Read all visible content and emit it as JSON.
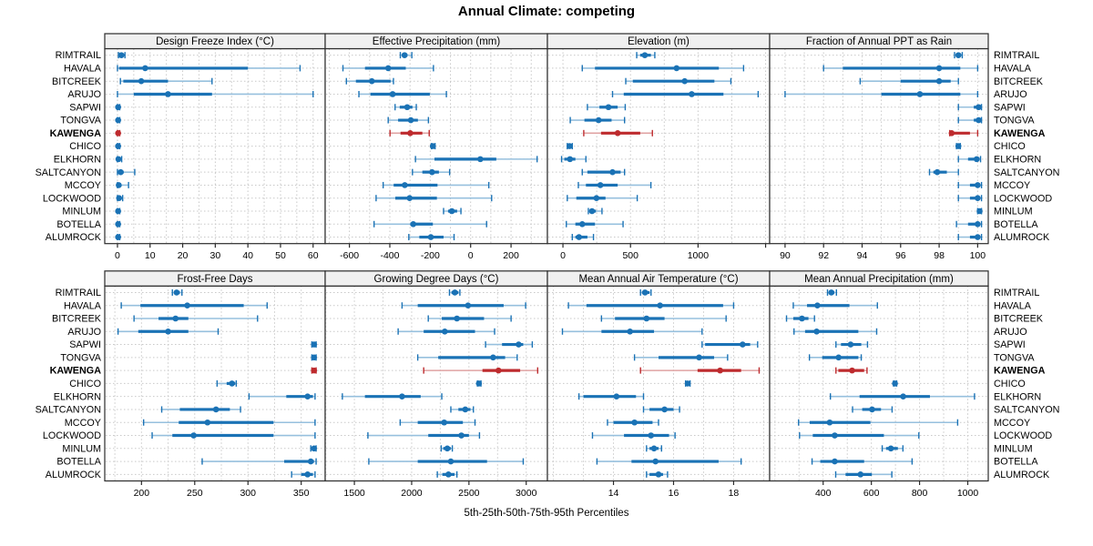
{
  "title": "Annual Climate: competing",
  "caption": "5th-25th-50th-75th-95th Percentiles",
  "sites": [
    "RIMTRAIL",
    "HAVALA",
    "BITCREEK",
    "ARUJO",
    "SAPWI",
    "TONGVA",
    "KAWENGA",
    "CHICO",
    "ELKHORN",
    "SALTCANYON",
    "MCCOY",
    "LOCKWOOD",
    "MINLUM",
    "BOTELLA",
    "ALUMROCK"
  ],
  "highlight_site": "KAWENGA",
  "colors": {
    "normal": "#1A72B5",
    "normal_light": "#97C0DE",
    "highlight": "#BE2B2E",
    "highlight_light": "#E0A3A3",
    "grid": "#C9C9C9",
    "strip_bg": "#F0F0F0",
    "border": "#2B2B2B"
  },
  "percentile_labels": [
    "p5",
    "p25",
    "p50",
    "p75",
    "p95"
  ],
  "chart_data": [
    {
      "type": "dotplot-interval",
      "title": "Design Freeze Index (°C)",
      "row": 0,
      "col": 0,
      "xlim": [
        -3.9,
        63.7
      ],
      "ticks": [
        0,
        10,
        20,
        30,
        40,
        50,
        60
      ],
      "ticks_unlabeled": [],
      "minor_step": 5,
      "values": [
        [
          0.3,
          0.8,
          1.2,
          1.7,
          2.3
        ],
        [
          0,
          0.5,
          8.5,
          40,
          56
        ],
        [
          0.9,
          1.8,
          7.3,
          15.5,
          29
        ],
        [
          0,
          5,
          15.5,
          29,
          60
        ],
        [
          0,
          0.1,
          0.2,
          0.4,
          0.7
        ],
        [
          0,
          0.1,
          0.2,
          0.4,
          0.7
        ],
        [
          0,
          0.1,
          0.2,
          0.4,
          0.7
        ],
        [
          0,
          0.1,
          0.2,
          0.4,
          0.7
        ],
        [
          0,
          0.1,
          0.3,
          0.6,
          1.3
        ],
        [
          0,
          0.3,
          1.0,
          1.9,
          5.3
        ],
        [
          0,
          0.1,
          0.4,
          1.0,
          3.4
        ],
        [
          0,
          0.2,
          0.5,
          0.9,
          1.6
        ],
        [
          0,
          0.1,
          0.2,
          0.4,
          0.7
        ],
        [
          0,
          0.1,
          0.2,
          0.4,
          0.7
        ],
        [
          0,
          0.1,
          0.2,
          0.4,
          0.7
        ]
      ]
    },
    {
      "type": "dotplot-interval",
      "title": "Effective Precipitation (mm)",
      "row": 0,
      "col": 1,
      "xlim": [
        -720,
        380
      ],
      "ticks": [
        -600,
        -400,
        -200,
        0,
        200
      ],
      "ticks_unlabeled": [],
      "minor_step": 100,
      "values": [
        [
          -348,
          -336,
          -327,
          -313,
          -291
        ],
        [
          -632,
          -523,
          -408,
          -321,
          -184
        ],
        [
          -615,
          -568,
          -489,
          -396,
          -382
        ],
        [
          -553,
          -496,
          -386,
          -202,
          -120
        ],
        [
          -374,
          -351,
          -314,
          -288,
          -269
        ],
        [
          -408,
          -359,
          -296,
          -261,
          -209
        ],
        [
          -399,
          -347,
          -299,
          -239,
          -205
        ],
        [
          -194,
          -191,
          -187,
          -181,
          -176
        ],
        [
          -273,
          -179,
          48,
          127,
          329
        ],
        [
          -288,
          -239,
          -191,
          -157,
          -104
        ],
        [
          -433,
          -381,
          -326,
          -164,
          90
        ],
        [
          -468,
          -373,
          -302,
          -167,
          104
        ],
        [
          -134,
          -112,
          -93,
          -67,
          -48
        ],
        [
          -478,
          -299,
          -284,
          -187,
          79
        ],
        [
          -306,
          -254,
          -197,
          -134,
          -82
        ]
      ]
    },
    {
      "type": "dotplot-interval",
      "title": "Elevation (m)",
      "row": 0,
      "col": 2,
      "xlim": [
        -115,
        1530
      ],
      "ticks": [
        0,
        500,
        1000
      ],
      "ticks_unlabeled": [
        1500
      ],
      "minor_step": 250,
      "values": [
        [
          546,
          572,
          606,
          651,
          680
        ],
        [
          143,
          237,
          841,
          1154,
          1337
        ],
        [
          465,
          517,
          901,
          1121,
          1243
        ],
        [
          367,
          450,
          953,
          1188,
          1445
        ],
        [
          181,
          270,
          337,
          405,
          461
        ],
        [
          54,
          159,
          264,
          360,
          456
        ],
        [
          154,
          282,
          405,
          572,
          662
        ],
        [
          32,
          40,
          49,
          60,
          69
        ],
        [
          -10,
          10,
          52,
          92,
          170
        ],
        [
          143,
          181,
          367,
          427,
          456
        ],
        [
          114,
          170,
          277,
          405,
          651
        ],
        [
          32,
          99,
          248,
          315,
          550
        ],
        [
          188,
          199,
          215,
          244,
          289
        ],
        [
          25,
          92,
          143,
          237,
          445
        ],
        [
          69,
          92,
          119,
          181,
          226
        ]
      ]
    },
    {
      "type": "dotplot-interval",
      "title": "Fraction of Annual PPT as Rain",
      "row": 0,
      "col": 3,
      "xlim": [
        89.2,
        100.55
      ],
      "ticks": [
        90,
        92,
        94,
        96,
        98,
        100
      ],
      "ticks_unlabeled": [],
      "minor_step": 1,
      "values": [
        [
          98.8,
          98.9,
          99.0,
          99.1,
          99.2
        ],
        [
          92.0,
          93.0,
          98.0,
          99.1,
          100.0
        ],
        [
          93.9,
          96.0,
          98.0,
          98.6,
          99.0
        ],
        [
          90.0,
          95.0,
          97.0,
          99.1,
          100.0
        ],
        [
          99.0,
          99.8,
          100.05,
          100.15,
          100.2
        ],
        [
          99.0,
          99.8,
          100.05,
          100.15,
          100.2
        ],
        [
          98.55,
          98.6,
          98.65,
          99.6,
          100.0
        ],
        [
          98.9,
          98.95,
          99.0,
          99.05,
          99.1
        ],
        [
          99.0,
          99.5,
          99.95,
          100.1,
          100.15
        ],
        [
          97.5,
          97.7,
          97.9,
          98.4,
          99.0
        ],
        [
          99.0,
          99.6,
          100.0,
          100.1,
          100.2
        ],
        [
          99.0,
          99.6,
          100.0,
          100.1,
          100.2
        ],
        [
          100.0,
          100.05,
          100.1,
          100.15,
          100.2
        ],
        [
          98.9,
          99.5,
          100.0,
          100.1,
          100.2
        ],
        [
          99.0,
          99.6,
          100.0,
          100.1,
          100.2
        ]
      ]
    },
    {
      "type": "dotplot-interval",
      "title": "Frost-Free Days",
      "row": 1,
      "col": 0,
      "xlim": [
        165.5,
        372.5
      ],
      "ticks": [
        200,
        250,
        300,
        350
      ],
      "ticks_unlabeled": [],
      "minor_step": 25,
      "values": [
        [
          229,
          231,
          233,
          236,
          238
        ],
        [
          181,
          199,
          243,
          296,
          318
        ],
        [
          193,
          216,
          232,
          244,
          309
        ],
        [
          178,
          197,
          225,
          244,
          272
        ],
        [
          360,
          361,
          362,
          363,
          364
        ],
        [
          360,
          361,
          362,
          363,
          364
        ],
        [
          360,
          361,
          362,
          363,
          364
        ],
        [
          271,
          280,
          285,
          288,
          289
        ],
        [
          301,
          336,
          356,
          361,
          363
        ],
        [
          219,
          236,
          270,
          283,
          293
        ],
        [
          202,
          235,
          262,
          324,
          363
        ],
        [
          210,
          229,
          249,
          324,
          363
        ],
        [
          359,
          361,
          362,
          363,
          364
        ],
        [
          257,
          334,
          359,
          362,
          364
        ],
        [
          341,
          350,
          356,
          361,
          363
        ]
      ]
    },
    {
      "type": "dotplot-interval",
      "title": "Growing Degree Days (°C)",
      "row": 1,
      "col": 1,
      "xlim": [
        1245,
        3185
      ],
      "ticks": [
        1500,
        2000,
        2500,
        3000
      ],
      "ticks_unlabeled": [],
      "minor_step": 250,
      "values": [
        [
          2330,
          2348,
          2377,
          2408,
          2421
        ],
        [
          1916,
          2053,
          2492,
          2803,
          2995
        ],
        [
          2145,
          2263,
          2395,
          2632,
          2868
        ],
        [
          1882,
          2105,
          2289,
          2553,
          2724
        ],
        [
          2645,
          2789,
          2934,
          2974,
          3053
        ],
        [
          2053,
          2232,
          2711,
          2816,
          2921
        ],
        [
          2105,
          2618,
          2758,
          2947,
          3100
        ],
        [
          2574,
          2580,
          2587,
          2596,
          2605
        ],
        [
          1395,
          1592,
          1916,
          2079,
          2263
        ],
        [
          2342,
          2408,
          2468,
          2513,
          2539
        ],
        [
          1900,
          2053,
          2284,
          2447,
          2553
        ],
        [
          1618,
          2145,
          2434,
          2500,
          2592
        ],
        [
          2258,
          2276,
          2311,
          2342,
          2355
        ],
        [
          1626,
          2053,
          2342,
          2658,
          2974
        ],
        [
          2224,
          2268,
          2321,
          2374,
          2395
        ]
      ]
    },
    {
      "type": "dotplot-interval",
      "title": "Mean Annual Air Temperature (°C)",
      "row": 1,
      "col": 2,
      "xlim": [
        11.8,
        19.2
      ],
      "ticks": [
        14,
        16,
        18
      ],
      "ticks_unlabeled": [],
      "minor_step": 1,
      "values": [
        [
          14.9,
          14.95,
          15.05,
          15.2,
          15.25
        ],
        [
          12.5,
          13.1,
          15.55,
          17.65,
          18.0
        ],
        [
          13.6,
          14.05,
          15.1,
          15.7,
          17.75
        ],
        [
          12.3,
          13.6,
          14.55,
          15.35,
          16.95
        ],
        [
          16.95,
          17.05,
          18.3,
          18.55,
          18.8
        ],
        [
          14.7,
          15.5,
          16.85,
          17.35,
          17.8
        ],
        [
          14.9,
          16.8,
          17.55,
          18.25,
          18.85
        ],
        [
          16.4,
          16.43,
          16.47,
          16.52,
          16.55
        ],
        [
          12.85,
          13.0,
          14.1,
          14.75,
          15.0
        ],
        [
          15.0,
          15.2,
          15.7,
          16.0,
          16.2
        ],
        [
          13.8,
          14.0,
          14.7,
          15.3,
          15.5
        ],
        [
          13.3,
          14.35,
          15.25,
          15.85,
          16.05
        ],
        [
          15.1,
          15.2,
          15.35,
          15.5,
          15.6
        ],
        [
          13.45,
          14.6,
          15.4,
          17.5,
          18.25
        ],
        [
          15.1,
          15.2,
          15.5,
          15.65,
          15.8
        ]
      ]
    },
    {
      "type": "dotplot-interval",
      "title": "Mean Annual Precipitation (mm)",
      "row": 1,
      "col": 3,
      "xlim": [
        178,
        1085
      ],
      "ticks": [
        400,
        600,
        800,
        1000
      ],
      "ticks_unlabeled": [],
      "minor_step": 100,
      "values": [
        [
          418,
          424,
          434,
          446,
          455
        ],
        [
          276,
          333,
          376,
          509,
          625
        ],
        [
          248,
          276,
          312,
          339,
          364
        ],
        [
          279,
          325,
          373,
          546,
          622
        ],
        [
          453,
          474,
          514,
          558,
          584
        ],
        [
          343,
          396,
          464,
          546,
          558
        ],
        [
          453,
          463,
          520,
          570,
          582
        ],
        [
          692,
          695,
          698,
          702,
          705
        ],
        [
          430,
          551,
          732,
          843,
          1028
        ],
        [
          522,
          562,
          603,
          640,
          686
        ],
        [
          298,
          344,
          427,
          596,
          958
        ],
        [
          302,
          357,
          448,
          652,
          797
        ],
        [
          645,
          661,
          681,
          710,
          731
        ],
        [
          354,
          388,
          448,
          570,
          769
        ],
        [
          452,
          493,
          555,
          602,
          685
        ]
      ]
    }
  ]
}
